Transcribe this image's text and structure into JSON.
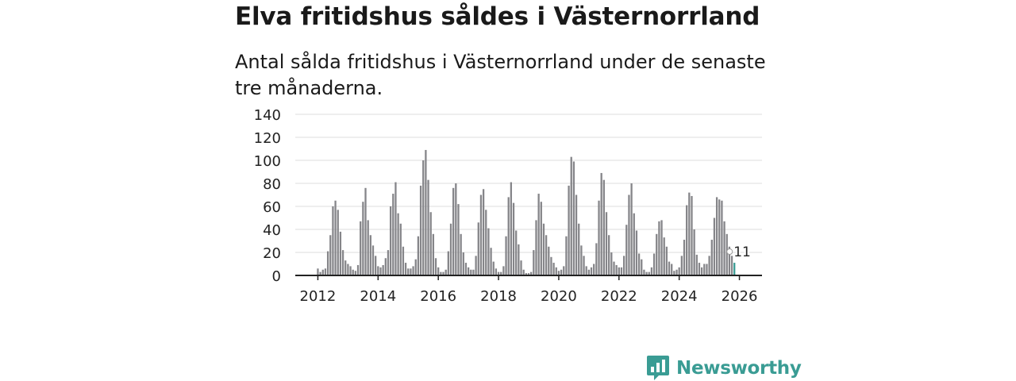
{
  "title": "Elva fritidshus såldes i Västernorrland",
  "subtitle": "Antal sålda fritidshus i Västernorrland under de senaste tre månaderna.",
  "brand": {
    "name": "Newsworthy",
    "icon": "newsworthy-logo-icon"
  },
  "colors": {
    "bar": "#858589",
    "highlight": "#3a9c94",
    "grid": "#dddddd",
    "axis": "#222222"
  },
  "chart_data": {
    "type": "bar",
    "title": "",
    "xlabel": "",
    "ylabel": "",
    "ylim": [
      0,
      140
    ],
    "yticks": [
      "0",
      "20",
      "40",
      "60",
      "80",
      "100",
      "120",
      "140"
    ],
    "xlim": [
      2011.25,
      2026.75
    ],
    "xticks": [
      "2012",
      "2014",
      "2016",
      "2018",
      "2020",
      "2022",
      "2024",
      "2026"
    ],
    "grid": true,
    "start": "2012-01",
    "frequency": "monthly",
    "highlight_label": "11",
    "series": [
      {
        "name": "Antal sålda fritidshus",
        "values": [
          6,
          3,
          5,
          6,
          21,
          35,
          60,
          65,
          57,
          38,
          22,
          13,
          10,
          8,
          5,
          4,
          9,
          47,
          64,
          76,
          48,
          35,
          26,
          17,
          8,
          7,
          9,
          15,
          22,
          60,
          71,
          81,
          54,
          45,
          25,
          11,
          6,
          6,
          8,
          14,
          34,
          78,
          100,
          109,
          83,
          55,
          36,
          15,
          7,
          3,
          3,
          5,
          21,
          45,
          76,
          80,
          62,
          36,
          20,
          11,
          7,
          5,
          5,
          17,
          46,
          70,
          75,
          57,
          41,
          24,
          12,
          6,
          3,
          3,
          8,
          34,
          68,
          81,
          63,
          39,
          27,
          13,
          5,
          2,
          2,
          3,
          22,
          48,
          71,
          64,
          45,
          35,
          25,
          16,
          11,
          7,
          4,
          5,
          8,
          34,
          78,
          103,
          99,
          70,
          45,
          26,
          17,
          8,
          5,
          7,
          10,
          28,
          65,
          89,
          83,
          55,
          35,
          20,
          12,
          9,
          7,
          7,
          17,
          44,
          70,
          80,
          54,
          39,
          19,
          14,
          5,
          3,
          3,
          7,
          19,
          36,
          47,
          48,
          33,
          25,
          12,
          10,
          4,
          5,
          7,
          17,
          31,
          61,
          72,
          69,
          40,
          18,
          11,
          7,
          10,
          10,
          17,
          31,
          50,
          68,
          66,
          65,
          47,
          36,
          25,
          17,
          11
        ]
      }
    ]
  }
}
